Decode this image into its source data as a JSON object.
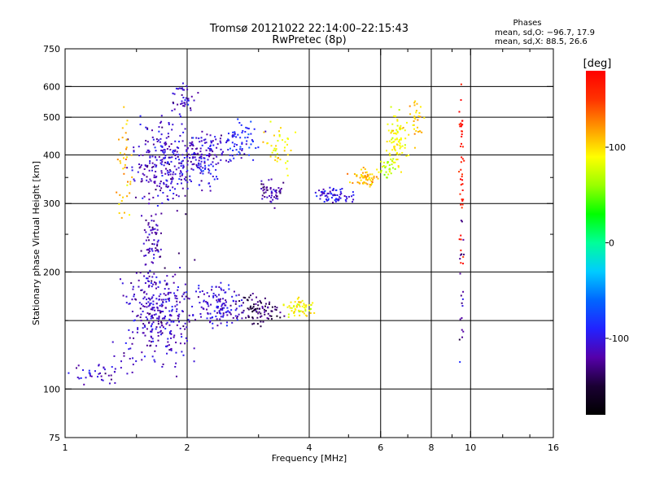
{
  "chart_data": {
    "type": "scatter",
    "title": "Tromsø 20121022 22:14:00–22:15:43",
    "subtitle": "RwPretec (8p)",
    "stats": {
      "heading": "Phases",
      "o_line": "mean, sd,O: −96.7, 17.9",
      "x_line": "mean, sd,X:  88.5, 26.6"
    },
    "xlabel": "Frequency [MHz]",
    "ylabel": "Stationary phase Virtual Height [km]",
    "x_scale": "log",
    "y_scale": "log",
    "xlim": [
      1,
      16
    ],
    "ylim": [
      75,
      750
    ],
    "x_ticks": [
      1,
      2,
      4,
      6,
      8,
      10,
      16
    ],
    "x_tick_labels": [
      "1",
      "2",
      "4",
      "6",
      "8",
      "10",
      "16"
    ],
    "x_minor_ticks": [
      1.5,
      3,
      5,
      7,
      9,
      12,
      14
    ],
    "x_gridlines": [
      2,
      4,
      6,
      8,
      10
    ],
    "y_ticks": [
      75,
      100,
      200,
      300,
      400,
      500,
      600,
      750
    ],
    "y_tick_labels": [
      "75",
      "100",
      "200",
      "300",
      "400",
      "500",
      "600",
      "750"
    ],
    "y_minor_ticks": [
      150,
      250,
      350
    ],
    "y_gridlines": [
      100,
      150,
      200,
      300,
      400,
      500,
      600
    ],
    "colorbar": {
      "label": "[deg]",
      "min": -180,
      "max": 180,
      "ticks": [
        100,
        0,
        -100
      ],
      "tick_labels": [
        "100",
        "0",
        "-100"
      ],
      "colors": [
        "#000000",
        "#1a0033",
        "#5500aa",
        "#2222ff",
        "#0066ff",
        "#00ccff",
        "#00ff99",
        "#00ff00",
        "#99ff00",
        "#ffff00",
        "#ff9900",
        "#ff3300",
        "#ff0000"
      ]
    },
    "series": [
      {
        "center": [
          1.75,
          380
        ],
        "spread": [
          0.13,
          0.18
        ],
        "count": 260,
        "phase": -110
      },
      {
        "center": [
          2.2,
          390
        ],
        "spread": [
          0.09,
          0.12
        ],
        "count": 140,
        "phase": -105
      },
      {
        "center": [
          1.95,
          560
        ],
        "spread": [
          0.05,
          0.08
        ],
        "count": 40,
        "phase": -110
      },
      {
        "center": [
          2.7,
          430
        ],
        "spread": [
          0.08,
          0.1
        ],
        "count": 70,
        "phase": -90
      },
      {
        "center": [
          3.4,
          420
        ],
        "spread": [
          0.07,
          0.1
        ],
        "count": 40,
        "phase": 90
      },
      {
        "center": [
          3.2,
          320
        ],
        "spread": [
          0.05,
          0.05
        ],
        "count": 50,
        "phase": -120
      },
      {
        "center": [
          4.6,
          315
        ],
        "spread": [
          0.09,
          0.03
        ],
        "count": 70,
        "phase": -100
      },
      {
        "center": [
          5.5,
          350
        ],
        "spread": [
          0.06,
          0.04
        ],
        "count": 60,
        "phase": 110
      },
      {
        "center": [
          6.6,
          440
        ],
        "spread": [
          0.04,
          0.12
        ],
        "count": 80,
        "phase": 90
      },
      {
        "center": [
          6.2,
          370
        ],
        "spread": [
          0.05,
          0.04
        ],
        "count": 30,
        "phase": 70
      },
      {
        "center": [
          7.3,
          490
        ],
        "spread": [
          0.03,
          0.1
        ],
        "count": 30,
        "phase": 110
      },
      {
        "center": [
          1.7,
          155
        ],
        "spread": [
          0.14,
          0.22
        ],
        "count": 330,
        "phase": -110
      },
      {
        "center": [
          1.65,
          250
        ],
        "spread": [
          0.04,
          0.12
        ],
        "count": 60,
        "phase": -115
      },
      {
        "center": [
          1.2,
          110
        ],
        "spread": [
          0.12,
          0.05
        ],
        "count": 40,
        "phase": -110
      },
      {
        "center": [
          2.4,
          165
        ],
        "spread": [
          0.1,
          0.09
        ],
        "count": 130,
        "phase": -105
      },
      {
        "center": [
          3.0,
          160
        ],
        "spread": [
          0.09,
          0.06
        ],
        "count": 90,
        "phase": -140
      },
      {
        "center": [
          3.8,
          162
        ],
        "spread": [
          0.06,
          0.04
        ],
        "count": 60,
        "phase": 90
      },
      {
        "center": [
          1.4,
          360
        ],
        "spread": [
          0.03,
          0.25
        ],
        "count": 40,
        "phase": 110
      },
      {
        "center": [
          9.5,
          350
        ],
        "spread": [
          0.01,
          0.35
        ],
        "count": 45,
        "phase": 170
      },
      {
        "center": [
          9.5,
          180
        ],
        "spread": [
          0.01,
          0.3
        ],
        "count": 20,
        "phase": -120
      }
    ]
  }
}
